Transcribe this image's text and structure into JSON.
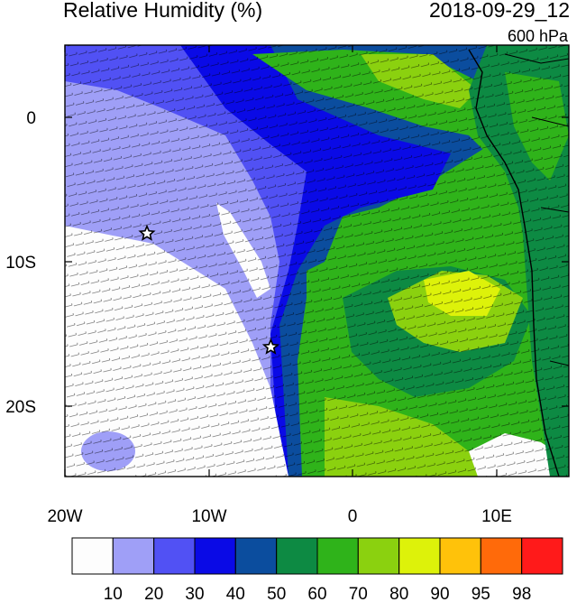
{
  "header": {
    "title": "Relative Humidity (%)",
    "datetime": "2018-09-29_12",
    "level": "600 hPa"
  },
  "map": {
    "lon_labels": [
      "20W",
      "10W",
      "0",
      "10E"
    ],
    "lat_labels": [
      "0",
      "10S",
      "20S"
    ],
    "markers": [
      {
        "name": "star-marker-1",
        "lon": -14.3,
        "lat": -8.1
      },
      {
        "name": "star-marker-2",
        "lon": -5.7,
        "lat": -16.0
      }
    ]
  },
  "colorbar": {
    "labels": [
      "10",
      "20",
      "30",
      "40",
      "50",
      "60",
      "70",
      "80",
      "90",
      "95",
      "98"
    ],
    "colors": [
      "#fdfdfd",
      "#9f9ff7",
      "#5151f4",
      "#0a0ae6",
      "#0b4d9e",
      "#0d8a43",
      "#2fb31a",
      "#8bd10f",
      "#ddf20a",
      "#ffc20a",
      "#ff6a0a",
      "#ff1a1a"
    ]
  }
}
